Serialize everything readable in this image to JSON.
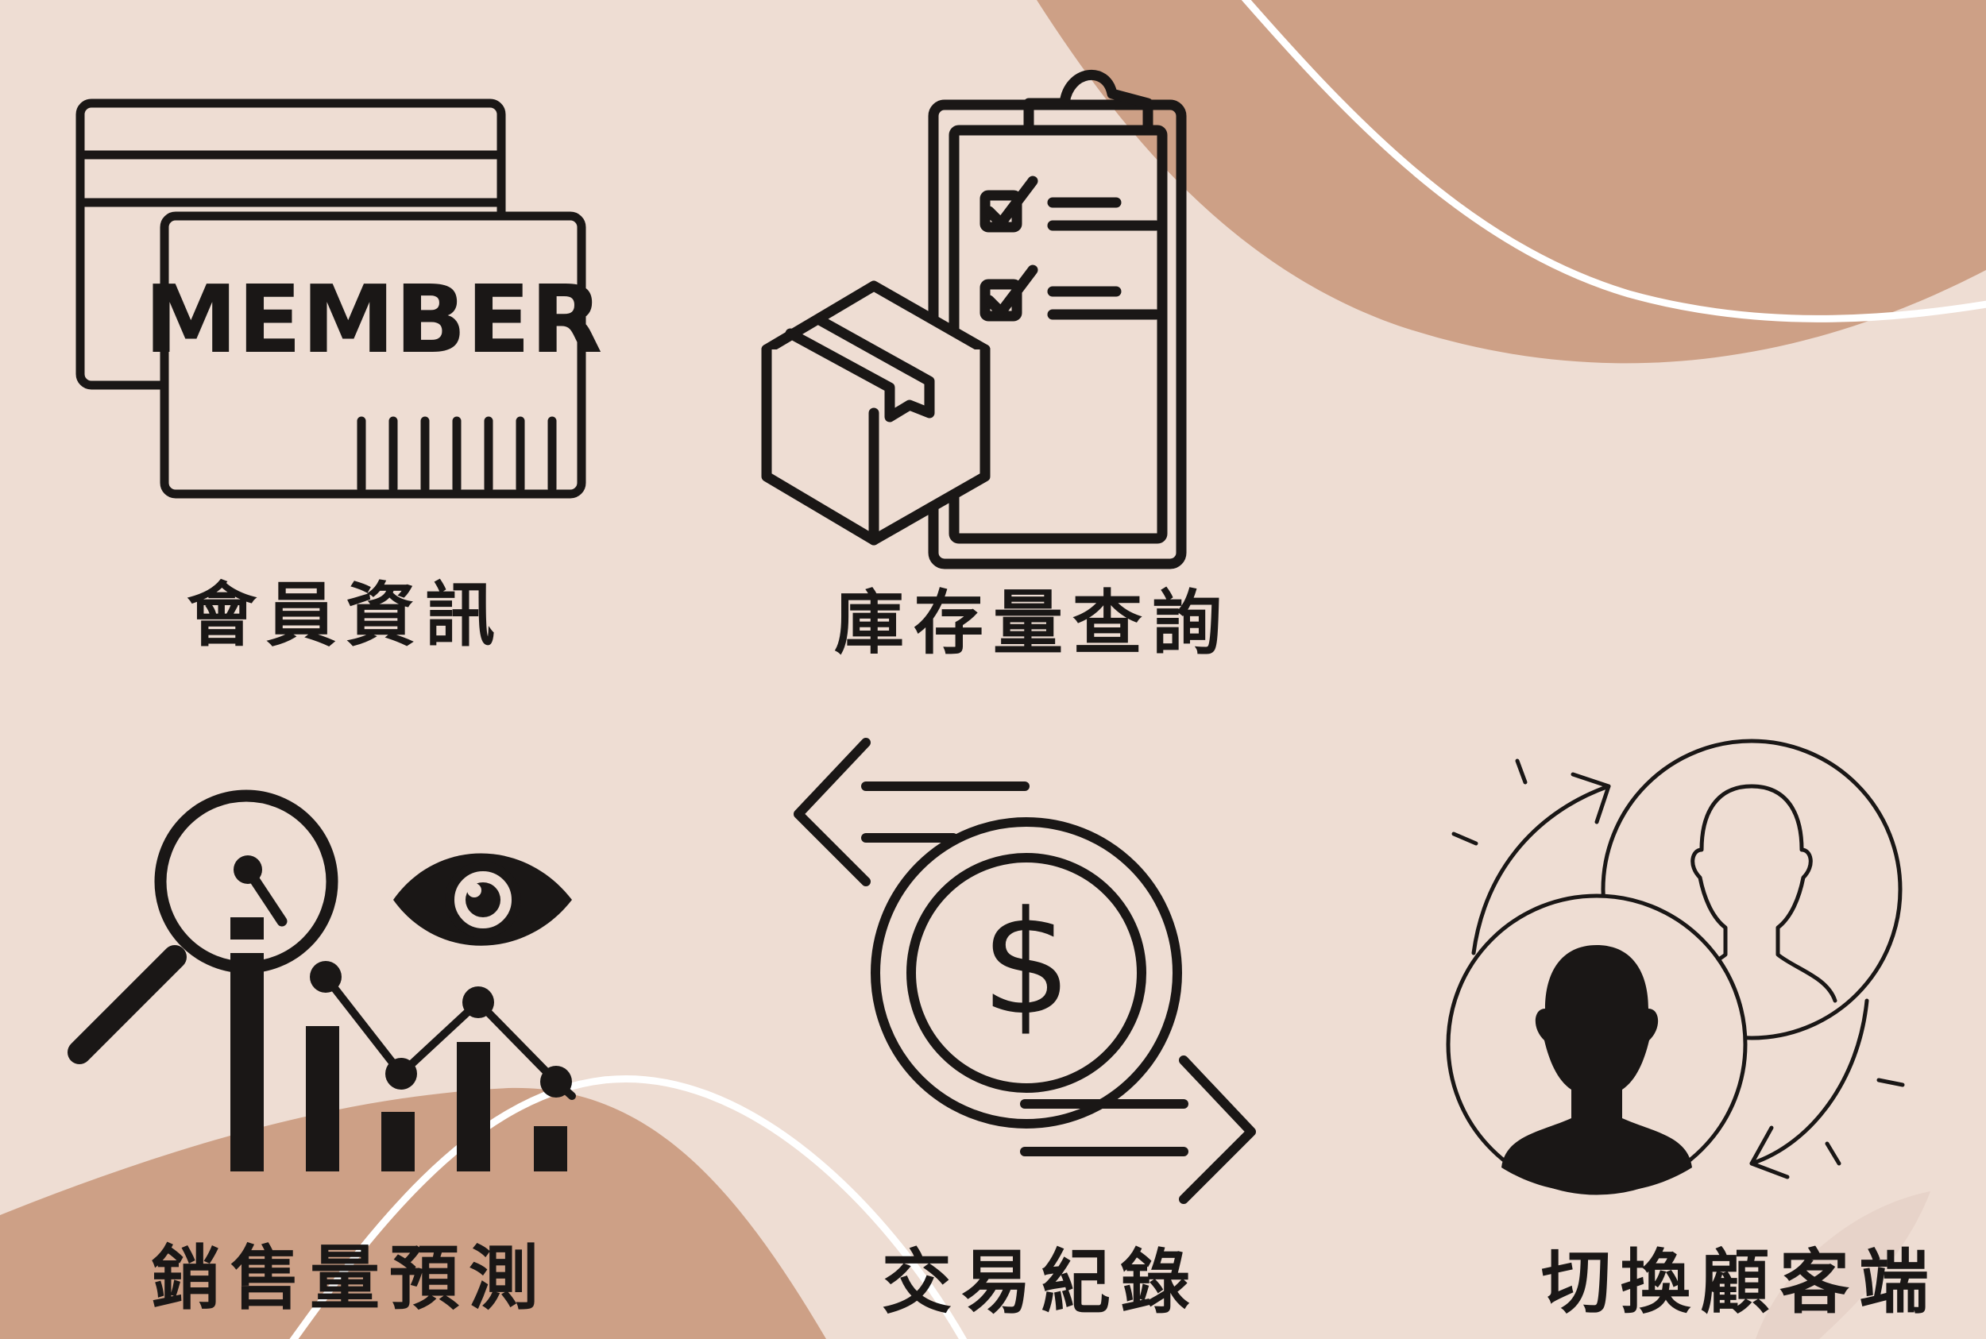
{
  "colors": {
    "background": "#EEDDD3",
    "blob": "#CDA086",
    "swoosh": "#FFFFFF",
    "ink": "#1A1716"
  },
  "tiles": [
    {
      "id": "member",
      "label": "會員資訊",
      "icon": "member-card-icon",
      "card_text": "MEMBER"
    },
    {
      "id": "inventory",
      "label": "庫存量查詢",
      "icon": "clipboard-box-icon"
    },
    {
      "id": "forecast",
      "label": "銷售量預測",
      "icon": "analytics-chart-icon"
    },
    {
      "id": "transactions",
      "label": "交易紀錄",
      "icon": "currency-exchange-icon",
      "currency_symbol": "$"
    },
    {
      "id": "switch",
      "label": "切換顧客端",
      "icon": "switch-user-icon"
    }
  ]
}
